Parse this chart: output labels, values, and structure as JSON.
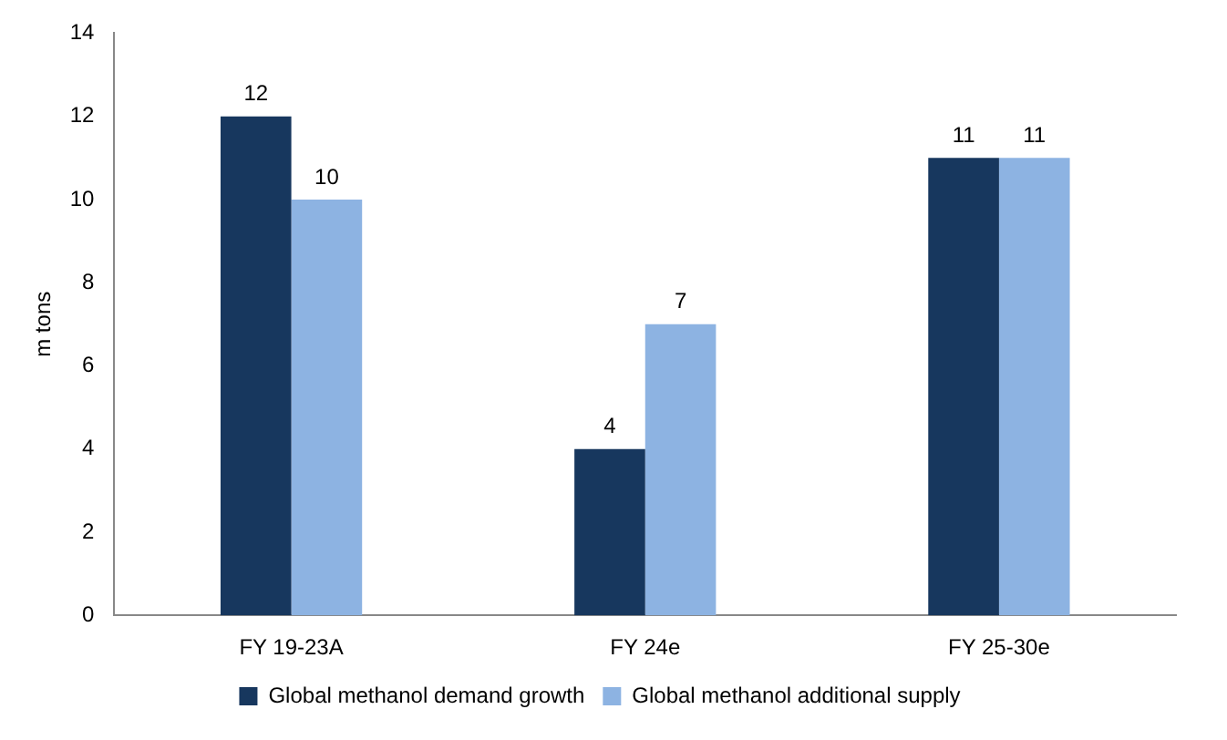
{
  "chart_data": {
    "type": "bar",
    "ylabel": "m tons",
    "categories": [
      "FY 19-23A",
      "FY 24e",
      "FY 25-30e"
    ],
    "series": [
      {
        "name": "Global methanol demand growth",
        "color": "#17375e",
        "values": [
          12,
          4,
          11
        ]
      },
      {
        "name": "Global methanol additional supply",
        "color": "#8db3e2",
        "values": [
          10,
          7,
          11
        ]
      }
    ],
    "ylim": [
      0,
      14
    ],
    "yticks": [
      0,
      2,
      4,
      6,
      8,
      10,
      12,
      14
    ],
    "grid": false,
    "legend": "bottom",
    "data_labels": true
  }
}
